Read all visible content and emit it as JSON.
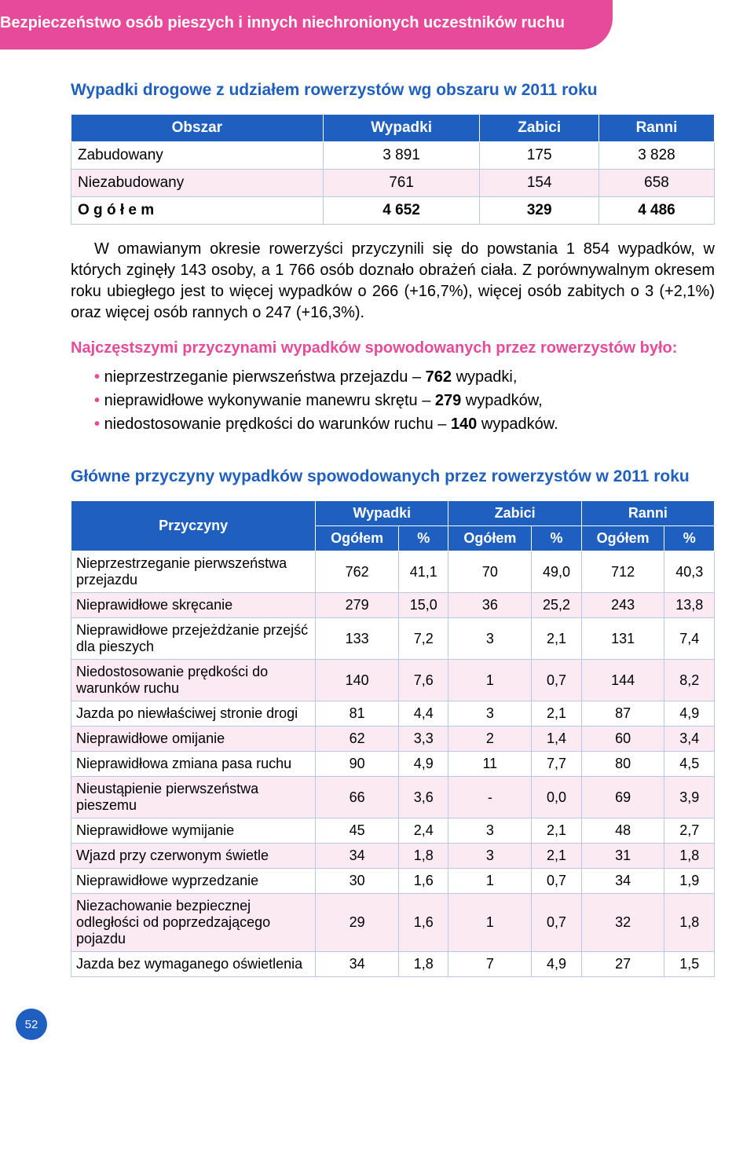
{
  "header": "Bezpieczeństwo osób pieszych i innych niechronionych uczestników ruchu",
  "table1": {
    "title": "Wypadki drogowe z udziałem rowerzystów wg obszaru w 2011 roku",
    "columns": [
      "Obszar",
      "Wypadki",
      "Zabici",
      "Ranni"
    ],
    "rows": [
      {
        "c": [
          "Zabudowany",
          "3 891",
          "175",
          "3 828"
        ],
        "alt": false
      },
      {
        "c": [
          "Niezabudowany",
          "761",
          "154",
          "658"
        ],
        "alt": true
      },
      {
        "c": [
          "O g ó ł e m",
          "4 652",
          "329",
          "4 486"
        ],
        "alt": false,
        "bold": true
      }
    ]
  },
  "para1": "W omawianym okresie rowerzyści przyczynili się do powstania 1 854 wypadków, w których zginęły 143 osoby, a 1 766 osób doznało obrażeń ciała. Z porównywalnym okresem roku ubiegłego jest to więcej wypadków o 266 (+16,7%), więcej osób zabitych o 3 (+2,1%) oraz więcej osób rannych o 247 (+16,3%).",
  "causes_lead": "Najczęstszymi przyczynami wypadków spowodowanych przez rowerzystów było:",
  "bullets": [
    {
      "pre": "nieprzestrzeganie pierwszeństwa przejazdu – ",
      "b": "762",
      "post": " wypadki,"
    },
    {
      "pre": "nieprawidłowe wykonywanie manewru skrętu – ",
      "b": "279",
      "post": " wypadków,"
    },
    {
      "pre": "niedostosowanie prędkości do warunków ruchu – ",
      "b": "140",
      "post": " wypadków."
    }
  ],
  "table2": {
    "title": "Główne przyczyny wypadków spowodowanych przez rowerzystów w 2011 roku",
    "head": {
      "rowhead": "Przyczyny",
      "groups": [
        "Wypadki",
        "Zabici",
        "Ranni"
      ],
      "sub": [
        "Ogółem",
        "%",
        "Ogółem",
        "%",
        "Ogółem",
        "%"
      ]
    },
    "rows": [
      {
        "label": "Nieprzestrzeganie pierwszeństwa przejazdu",
        "v": [
          "762",
          "41,1",
          "70",
          "49,0",
          "712",
          "40,3"
        ],
        "alt": false
      },
      {
        "label": "Nieprawidłowe skręcanie",
        "v": [
          "279",
          "15,0",
          "36",
          "25,2",
          "243",
          "13,8"
        ],
        "alt": true
      },
      {
        "label": "Nieprawidłowe przejeżdżanie przejść dla pieszych",
        "v": [
          "133",
          "7,2",
          "3",
          "2,1",
          "131",
          "7,4"
        ],
        "alt": false
      },
      {
        "label": "Niedostosowanie prędkości do warunków ruchu",
        "v": [
          "140",
          "7,6",
          "1",
          "0,7",
          "144",
          "8,2"
        ],
        "alt": true
      },
      {
        "label": "Jazda po niewłaściwej stronie drogi",
        "v": [
          "81",
          "4,4",
          "3",
          "2,1",
          "87",
          "4,9"
        ],
        "alt": false
      },
      {
        "label": "Nieprawidłowe omijanie",
        "v": [
          "62",
          "3,3",
          "2",
          "1,4",
          "60",
          "3,4"
        ],
        "alt": true
      },
      {
        "label": "Nieprawidłowa zmiana pasa ruchu",
        "v": [
          "90",
          "4,9",
          "11",
          "7,7",
          "80",
          "4,5"
        ],
        "alt": false
      },
      {
        "label": "Nieustąpienie pierwszeństwa pieszemu",
        "v": [
          "66",
          "3,6",
          "-",
          "0,0",
          "69",
          "3,9"
        ],
        "alt": true
      },
      {
        "label": "Nieprawidłowe wymijanie",
        "v": [
          "45",
          "2,4",
          "3",
          "2,1",
          "48",
          "2,7"
        ],
        "alt": false
      },
      {
        "label": "Wjazd przy czerwonym świetle",
        "v": [
          "34",
          "1,8",
          "3",
          "2,1",
          "31",
          "1,8"
        ],
        "alt": true
      },
      {
        "label": "Nieprawidłowe wyprzedzanie",
        "v": [
          "30",
          "1,6",
          "1",
          "0,7",
          "34",
          "1,9"
        ],
        "alt": false
      },
      {
        "label": "Niezachowanie bezpiecznej odległości od poprzedzającego pojazdu",
        "v": [
          "29",
          "1,6",
          "1",
          "0,7",
          "32",
          "1,8"
        ],
        "alt": true
      },
      {
        "label": "Jazda bez wymaganego oświetlenia",
        "v": [
          "34",
          "1,8",
          "7",
          "4,9",
          "27",
          "1,5"
        ],
        "alt": false
      }
    ]
  },
  "page_number": "52"
}
